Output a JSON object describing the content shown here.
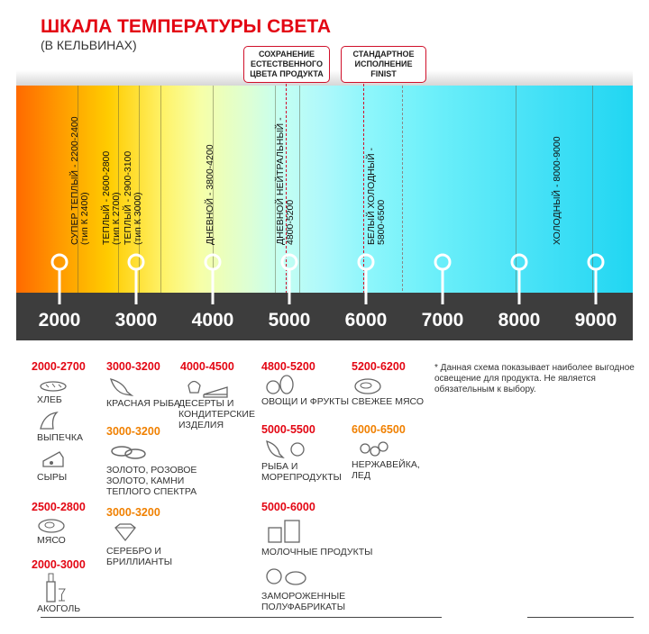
{
  "header": {
    "title": "ШКАЛА ТЕМПЕРАТУРЫ СВЕТА",
    "subtitle": "(В КЕЛЬВИНАХ)"
  },
  "callouts": [
    {
      "text": "СОХРАНЕНИЕ ЕСТЕСТВЕННОГО ЦВЕТА ПРОДУКТА",
      "kelvin": 5000
    },
    {
      "text": "СТАНДАРТНОЕ ИСПОЛНЕНИЕ FINIST",
      "kelvin": 6000
    }
  ],
  "scale": {
    "ticks": [
      "2000",
      "3000",
      "4000",
      "5000",
      "6000",
      "7000",
      "8000",
      "9000"
    ],
    "bands": [
      {
        "l1": "СУПЕР ТЕПЛЫЙ - 2200-2400",
        "l2": "(тип К 2400)"
      },
      {
        "l1": "ТЕПЛЫЙ - 2600-2800",
        "l2": "(тип К 2700)"
      },
      {
        "l1": "ТЕПЛЫЙ - 2900-3100",
        "l2": "(тип К 3000)"
      },
      {
        "l1": "ДНЕВНОЙ - 3800-4200",
        "l2": ""
      },
      {
        "l1": "ДНЕВНОЙ НЕЙТРАЛЬНЫЙ -",
        "l2": "4800-5200"
      },
      {
        "l1": "БЕЛЫЙ ХОЛОДНЫЙ -",
        "l2": "5800-6500"
      },
      {
        "l1": "ХОЛОДНЫЙ - 8000-9000",
        "l2": ""
      }
    ]
  },
  "items": {
    "c1": {
      "r1": "2000-2700",
      "bread": "ХЛЕБ",
      "pastry": "ВЫПЕЧКА",
      "cheese": "СЫРЫ",
      "r2": "2500-2800",
      "meat": "МЯСО",
      "r3": "2000-3000",
      "alcohol": "АКОГОЛЬ"
    },
    "c2": {
      "r1": "3000-3200",
      "fish": "КРАСНАЯ РЫБА",
      "r2": "3000-3200",
      "gold": "ЗОЛОТО, РОЗОВОЕ ЗОЛОТО, КАМНИ ТЕПЛОГО СПЕКТРА",
      "r3": "3000-3200",
      "silver": "СЕРЕБРО И БРИЛЛИАНТЫ"
    },
    "c3": {
      "r1": "4000-4500",
      "desserts": "ДЕСЕРТЫ И КОНДИТЕРСКИЕ ИЗДЕЛИЯ"
    },
    "c4": {
      "r1": "4800-5200",
      "veg": "ОВОЩИ И ФРУКТЫ",
      "r2": "5000-5500",
      "seafood": "РЫБА И МОРЕПРОДУКТЫ",
      "r3": "5000-6000",
      "dairy": "МОЛОЧНЫЕ ПРОДУКТЫ",
      "frozen": "ЗАМОРОЖЕННЫЕ ПОЛУФАБРИКАТЫ"
    },
    "c5": {
      "r1": "5200-6200",
      "fresh": "СВЕЖЕЕ МЯСО",
      "r2": "6000-6500",
      "steel": "НЕРЖАВЕЙКА, ЛЕД"
    }
  },
  "note": "* Данная схема показывает наиболее выгодное освещение для продукта. Не является обязательным к выбору.",
  "colors": {
    "accent": "#e30613",
    "orange": "#f08000",
    "bar": "#3d3d3d"
  }
}
